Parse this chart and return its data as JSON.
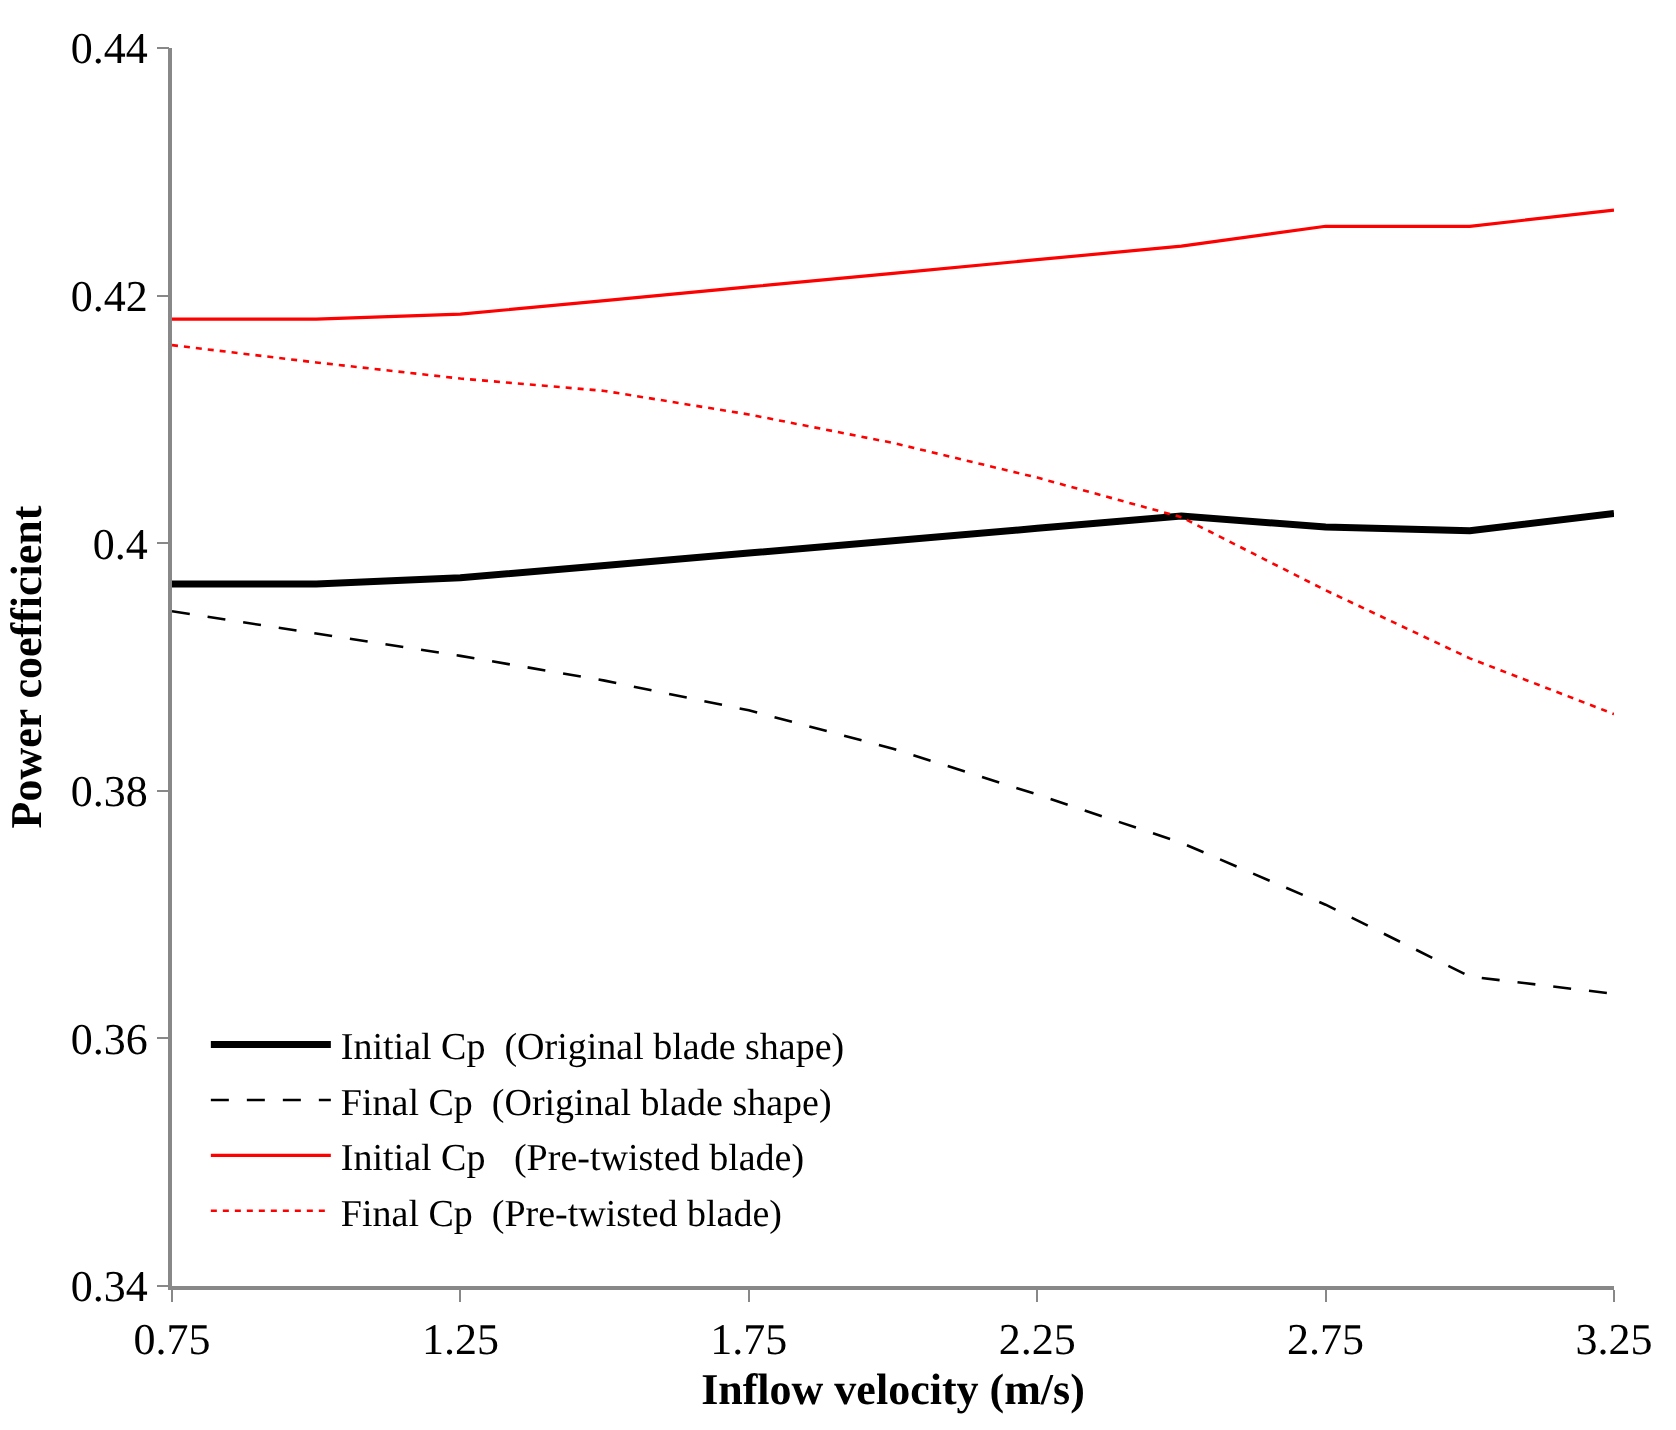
{
  "chart_data": {
    "type": "line",
    "xlabel": "Inflow velocity (m/s)",
    "ylabel": "Power coefficient",
    "x": [
      0.75,
      1.0,
      1.25,
      1.5,
      1.75,
      2.0,
      2.25,
      2.5,
      2.75,
      3.0,
      3.25
    ],
    "series": [
      {
        "name": "Initial Cp  (Original blade shape)",
        "color": "#000000",
        "line_style": "solid",
        "values": [
          0.3967,
          0.3967,
          0.3972,
          0.3982,
          0.3992,
          0.4002,
          0.4012,
          0.4022,
          0.4013,
          0.401,
          0.4024
        ]
      },
      {
        "name": "Final Cp  (Original blade shape)",
        "color": "#000000",
        "line_style": "dashed",
        "values": [
          0.3945,
          0.3927,
          0.3909,
          0.3889,
          0.3865,
          0.3834,
          0.3797,
          0.3758,
          0.3708,
          0.365,
          0.3636
        ]
      },
      {
        "name": "Initial Cp   (Pre-twisted blade)",
        "color": "#ff0000",
        "line_style": "solid",
        "values": [
          0.4181,
          0.4181,
          0.4185,
          0.4196,
          0.4207,
          0.4218,
          0.4229,
          0.424,
          0.4256,
          0.4256,
          0.4269
        ]
      },
      {
        "name": "Final Cp  (Pre-twisted blade)",
        "color": "#ff0000",
        "line_style": "dotted",
        "values": [
          0.416,
          0.4146,
          0.4133,
          0.4123,
          0.4104,
          0.4081,
          0.4053,
          0.4021,
          0.3962,
          0.3907,
          0.3862
        ]
      }
    ],
    "xlim": [
      0.75,
      3.25
    ],
    "xticks": [
      0.75,
      1.25,
      1.75,
      2.25,
      2.75,
      3.25
    ],
    "ylim": [
      0.34,
      0.44
    ],
    "yticks": [
      {
        "value": 0.34,
        "label": "0.34"
      },
      {
        "value": 0.36,
        "label": "0.36"
      },
      {
        "value": 0.38,
        "label": "0.38"
      },
      {
        "value": 0.4,
        "label": "0.4"
      },
      {
        "value": 0.42,
        "label": "0.42"
      },
      {
        "value": 0.44,
        "label": "0.44"
      }
    ],
    "legend": "bottom left",
    "marker": "none"
  }
}
